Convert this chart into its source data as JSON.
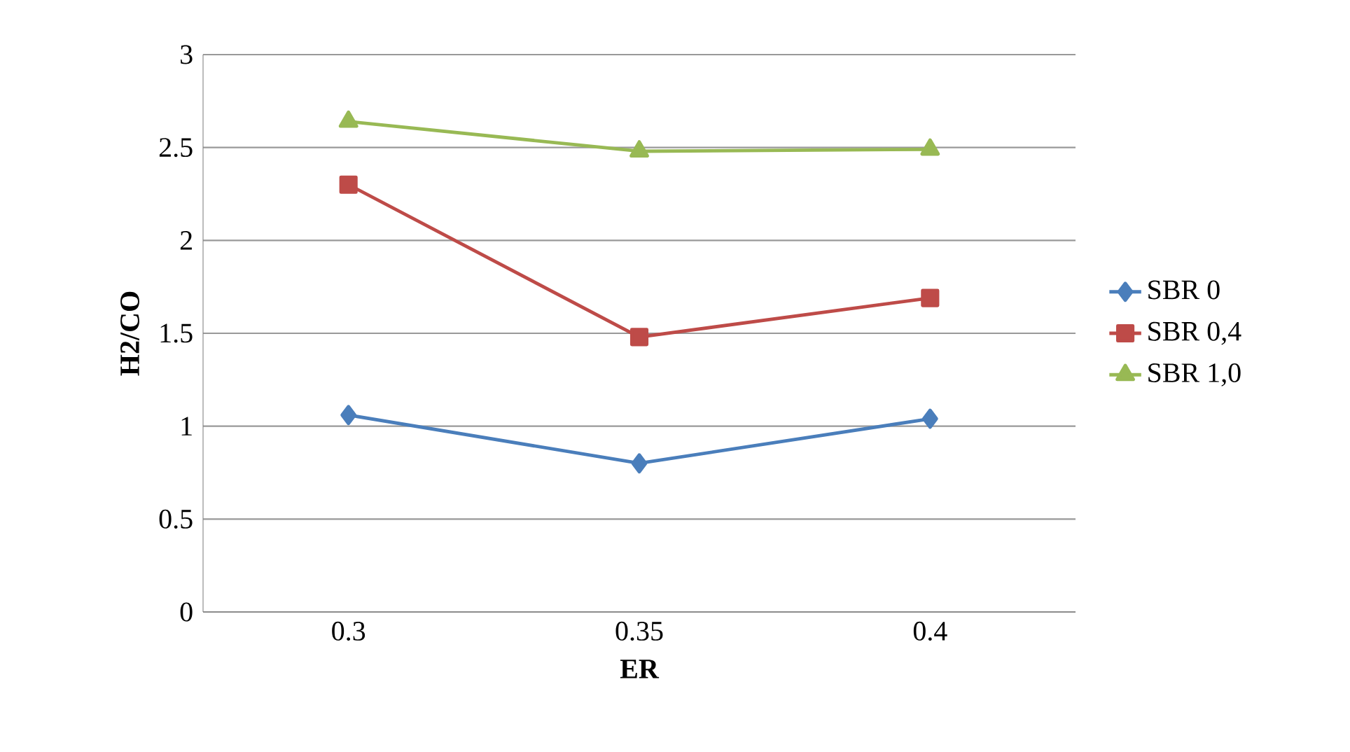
{
  "chart_data": {
    "type": "line",
    "xlabel": "ER",
    "ylabel": "H2/CO",
    "categories": [
      "0.3",
      "0.35",
      "0.4"
    ],
    "series": [
      {
        "name": "SBR 0",
        "color": "#4a7ebb",
        "marker": "diamond",
        "values": [
          1.06,
          0.8,
          1.04
        ]
      },
      {
        "name": "SBR 0,4",
        "color": "#be4b48",
        "marker": "square",
        "values": [
          2.3,
          1.48,
          1.69
        ]
      },
      {
        "name": "SBR 1,0",
        "color": "#98b954",
        "marker": "triangle",
        "values": [
          2.64,
          2.48,
          2.49
        ]
      }
    ],
    "ylim": [
      0,
      3
    ],
    "yticks": [
      0,
      0.5,
      1,
      1.5,
      2,
      2.5,
      3
    ],
    "grid": "y",
    "legend": "right",
    "line_style": "solid"
  }
}
